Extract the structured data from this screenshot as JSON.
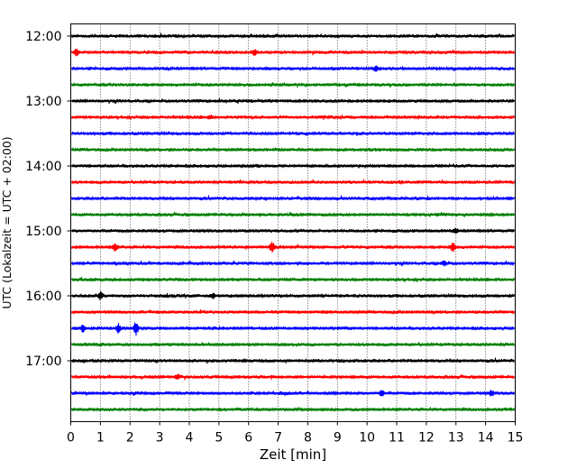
{
  "chart_data": {
    "type": "line",
    "title": "",
    "xlabel": "Zeit  [min]",
    "ylabel": "UTC (Lokalzeit = UTC + 02:00)",
    "xlim": [
      0,
      15
    ],
    "x_ticks": [
      0,
      1,
      2,
      3,
      4,
      5,
      6,
      7,
      8,
      9,
      10,
      11,
      12,
      13,
      14,
      15
    ],
    "y_tick_labels": [
      "12:00",
      "13:00",
      "14:00",
      "15:00",
      "16:00",
      "17:00"
    ],
    "grid": "vertical-dotted",
    "trace_colors": [
      "#000000",
      "#ff0000",
      "#0000ff",
      "#008000"
    ],
    "trace_count": 24,
    "trace_start_times": [
      "12:00",
      "12:15",
      "12:30",
      "12:45",
      "13:00",
      "13:15",
      "13:30",
      "13:45",
      "14:00",
      "14:15",
      "14:30",
      "14:45",
      "15:00",
      "15:15",
      "15:30",
      "15:45",
      "16:00",
      "16:15",
      "16:30",
      "16:45",
      "17:00",
      "17:15",
      "17:30",
      "17:45"
    ],
    "events": [
      {
        "trace": 1,
        "x": 0.2,
        "amp": 4
      },
      {
        "trace": 1,
        "x": 6.2,
        "amp": 3
      },
      {
        "trace": 2,
        "x": 10.3,
        "amp": 3
      },
      {
        "trace": 5,
        "x": 4.7,
        "amp": 2.5
      },
      {
        "trace": 13,
        "x": 1.5,
        "amp": 4
      },
      {
        "trace": 13,
        "x": 6.8,
        "amp": 5.5
      },
      {
        "trace": 13,
        "x": 12.9,
        "amp": 5
      },
      {
        "trace": 12,
        "x": 13.0,
        "amp": 3
      },
      {
        "trace": 14,
        "x": 12.6,
        "amp": 3
      },
      {
        "trace": 16,
        "x": 1.0,
        "amp": 4
      },
      {
        "trace": 16,
        "x": 4.8,
        "amp": 3
      },
      {
        "trace": 18,
        "x": 0.4,
        "amp": 4
      },
      {
        "trace": 18,
        "x": 1.6,
        "amp": 5
      },
      {
        "trace": 18,
        "x": 2.2,
        "amp": 8
      },
      {
        "trace": 21,
        "x": 3.6,
        "amp": 2.5
      },
      {
        "trace": 22,
        "x": 10.5,
        "amp": 3
      },
      {
        "trace": 22,
        "x": 14.2,
        "amp": 3
      }
    ]
  }
}
